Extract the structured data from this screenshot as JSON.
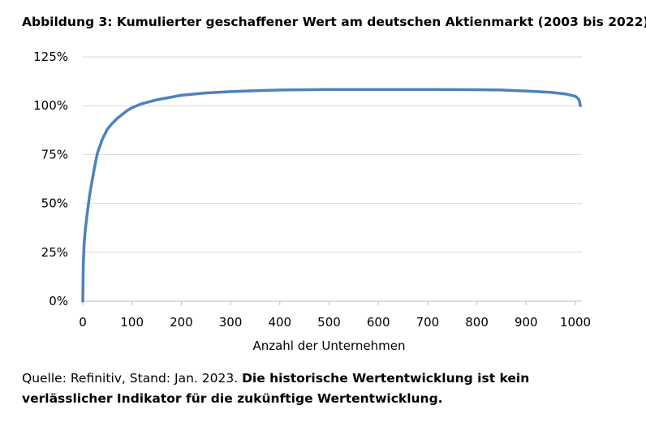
{
  "chart_data": {
    "type": "line",
    "title": "Abbildung 3: Kumulierter geschaffener Wert am deutschen Aktienmarkt (2003 bis 2022)",
    "xlabel": "Anzahl der Unternehmen",
    "ylabel": "",
    "xlim": [
      0,
      1010
    ],
    "ylim": [
      0,
      125
    ],
    "xticks": [
      0,
      100,
      200,
      300,
      400,
      500,
      600,
      700,
      800,
      900,
      1000
    ],
    "yticks": [
      0,
      25,
      50,
      75,
      100,
      125
    ],
    "ytick_labels": [
      "0%",
      "25%",
      "50%",
      "75%",
      "100%",
      "125%"
    ],
    "grid": "horizontal",
    "legend": "none",
    "line_color": "#4f81bd",
    "series": [
      {
        "x": [
          0,
          1,
          2,
          3,
          5,
          8,
          10,
          15,
          20,
          25,
          30,
          40,
          50,
          60,
          70,
          80,
          90,
          100,
          120,
          150,
          200,
          250,
          300,
          350,
          400,
          500,
          600,
          700,
          800,
          850,
          900,
          950,
          980,
          1000,
          1005,
          1008,
          1010
        ],
        "y": [
          0,
          18,
          25,
          30,
          36,
          43,
          47,
          56,
          63,
          70,
          76,
          83,
          88,
          91,
          93.5,
          95.5,
          97.5,
          99,
          101,
          103,
          105.3,
          106.5,
          107.2,
          107.7,
          108,
          108.3,
          108.3,
          108.3,
          108.2,
          108,
          107.5,
          106.8,
          106,
          104.8,
          103.8,
          102.5,
          100
        ]
      }
    ]
  },
  "caption": {
    "source": "Quelle: Refinitiv, Stand: Jan. 2023.",
    "disclaimer": "Die historische Wertentwicklung ist kein verlässlicher Indikator für die zukünftige Wertentwicklung."
  }
}
